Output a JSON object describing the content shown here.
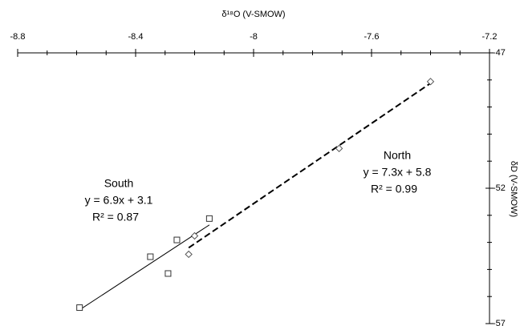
{
  "chart_data": {
    "type": "scatter",
    "x_label": "δ¹⁸O (V-SMOW)",
    "y_label": "δD (V-SMOW)",
    "xlim": [
      -8.8,
      -7.2
    ],
    "xticks": [
      -8.8,
      -8.4,
      -8,
      -7.6,
      -7.2
    ],
    "xminor": 4,
    "ylim": [
      -57,
      -47
    ],
    "yticks": [
      -47,
      -52,
      -57
    ],
    "yminor": 5,
    "x_axis_position": "top",
    "y_axis_position": "right",
    "series": [
      {
        "name": "South",
        "marker": "square",
        "color": "#333333",
        "line_style": "solid",
        "x": [
          -8.59,
          -8.35,
          -8.29,
          -8.26,
          -8.15
        ],
        "values": [
          -56.41,
          -54.53,
          -55.15,
          -53.91,
          -53.12
        ],
        "annotation": [
          "South",
          "y = 6.9x + 3.1",
          "R² = 0.87"
        ]
      },
      {
        "name": "North",
        "marker": "diamond",
        "color": "#555555",
        "line_style": "dashed",
        "x": [
          -7.4,
          -7.71,
          -8.2,
          -8.22
        ],
        "values": [
          -48.06,
          -50.53,
          -53.76,
          -54.44
        ],
        "annotation": [
          "North",
          "y = 7.3x + 5.8",
          "R² = 0.99"
        ]
      }
    ]
  }
}
